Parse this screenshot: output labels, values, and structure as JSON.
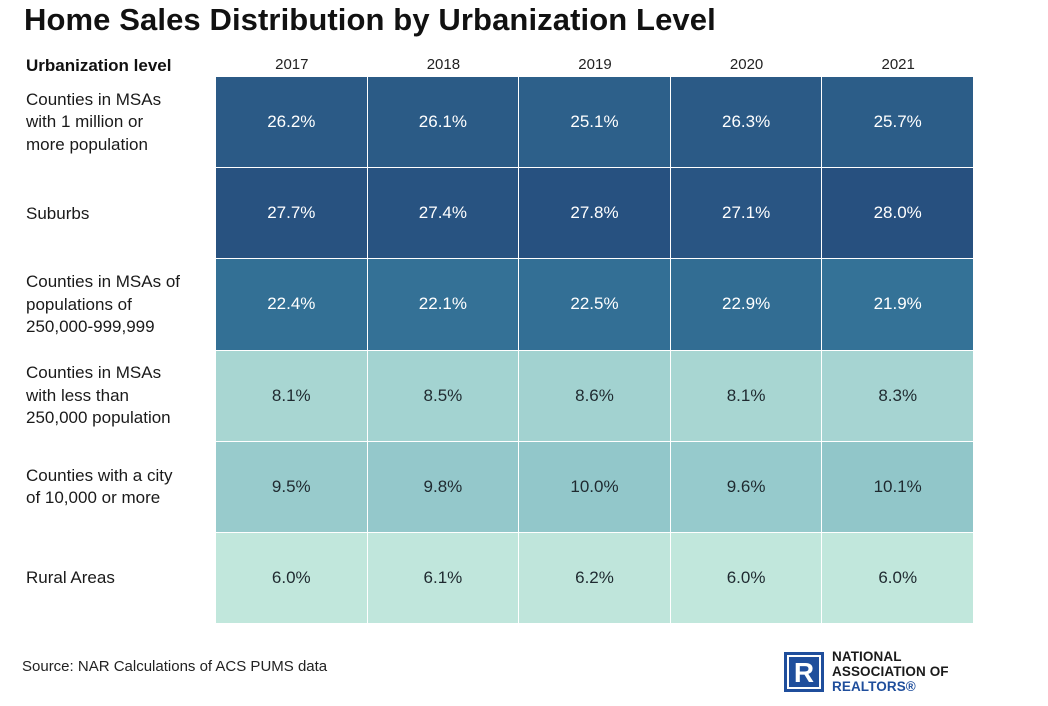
{
  "title": "Home Sales Distribution by Urbanization Level",
  "source": "Source: NAR Calculations of ACS PUMS data",
  "logo": {
    "line1": "NATIONAL",
    "line2": "ASSOCIATION OF",
    "line3": "REALTORS®",
    "mark": "R",
    "color": "#1f4e9c"
  },
  "colors": {
    "dark_text": "#ffffff",
    "light_text": "#1f2a30",
    "scale": [
      "#c1e7dc",
      "#3f8eaa",
      "#27507f"
    ]
  },
  "chart_data": {
    "type": "heatmap",
    "title": "Home Sales Distribution by Urbanization Level",
    "row_header": "Urbanization level",
    "columns": [
      "2017",
      "2018",
      "2019",
      "2020",
      "2021"
    ],
    "rows": [
      {
        "label": "Counties in MSAs with 1 million or more population",
        "label_lines": [
          "Counties in MSAs",
          "with 1 million or",
          "more population"
        ],
        "values": [
          26.2,
          26.1,
          25.1,
          26.3,
          25.7
        ],
        "display": [
          "26.2%",
          "26.1%",
          "25.1%",
          "26.3%",
          "25.7%"
        ]
      },
      {
        "label": "Suburbs",
        "label_lines": [
          "Suburbs"
        ],
        "values": [
          27.7,
          27.4,
          27.8,
          27.1,
          28.0
        ],
        "display": [
          "27.7%",
          "27.4%",
          "27.8%",
          "27.1%",
          "28.0%"
        ]
      },
      {
        "label": "Counties in MSAs of populations of 250,000-999,999",
        "label_lines": [
          "Counties in MSAs of",
          "populations of",
          "250,000-999,999"
        ],
        "values": [
          22.4,
          22.1,
          22.5,
          22.9,
          21.9
        ],
        "display": [
          "22.4%",
          "22.1%",
          "22.5%",
          "22.9%",
          "21.9%"
        ]
      },
      {
        "label": "Counties in MSAs with less than 250,000 population",
        "label_lines": [
          "Counties in MSAs",
          "with less than",
          "250,000 population"
        ],
        "values": [
          8.1,
          8.5,
          8.6,
          8.1,
          8.3
        ],
        "display": [
          "8.1%",
          "8.5%",
          "8.6%",
          "8.1%",
          "8.3%"
        ]
      },
      {
        "label": "Counties with a city of 10,000 or more",
        "label_lines": [
          "Counties with a city",
          "of 10,000 or more"
        ],
        "values": [
          9.5,
          9.8,
          10.0,
          9.6,
          10.1
        ],
        "display": [
          "9.5%",
          "9.8%",
          "10.0%",
          "9.6%",
          "10.1%"
        ]
      },
      {
        "label": "Rural Areas",
        "label_lines": [
          "Rural Areas"
        ],
        "values": [
          6.0,
          6.1,
          6.2,
          6.0,
          6.0
        ],
        "display": [
          "6.0%",
          "6.1%",
          "6.2%",
          "6.0%",
          "6.0%"
        ]
      }
    ],
    "value_unit": "%",
    "grid": false,
    "legend": "none"
  }
}
